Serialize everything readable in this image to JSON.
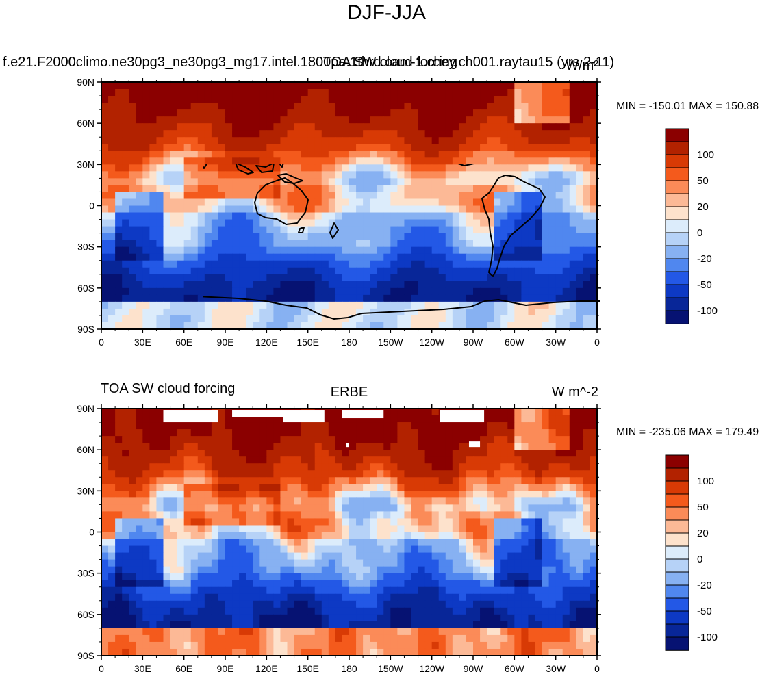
{
  "figure": {
    "title": "DJF-JJA"
  },
  "panels": [
    {
      "left_title": "f.e21.F2000climo.ne30pg3_ne30pg3_mg17.intel.1800pe.1thrd.cam-1.chey.ch001.raytau15 (yrs 2-11)",
      "center_title": "TOA SW cloud forcing",
      "right_title": "W/m²",
      "minmax": "MIN = -150.01 MAX = 150.88",
      "lat_ticks": [
        "90N",
        "60N",
        "30N",
        "0",
        "30S",
        "60S",
        "90S"
      ],
      "lon_ticks": [
        "0",
        "30E",
        "60E",
        "90E",
        "120E",
        "150E",
        "180",
        "150W",
        "120W",
        "90W",
        "60W",
        "30W",
        "0"
      ]
    },
    {
      "left_title": "TOA SW cloud forcing",
      "center_title": "ERBE",
      "right_title": "W m^-2",
      "minmax": "MIN = -235.06 MAX = 179.49",
      "lat_ticks": [
        "90N",
        "60N",
        "30N",
        "0",
        "30S",
        "60S",
        "90S"
      ],
      "lon_ticks": [
        "0",
        "30E",
        "60E",
        "90E",
        "120E",
        "150E",
        "180",
        "150W",
        "120W",
        "90W",
        "60W",
        "30W",
        "0"
      ]
    }
  ],
  "colorbar": {
    "labels": [
      "100",
      "50",
      "20",
      "0",
      "-20",
      "-50",
      "-100"
    ],
    "colors": [
      "#8b0000",
      "#b22200",
      "#d83a05",
      "#f45a1c",
      "#fb8b58",
      "#fcb996",
      "#fde2cc",
      "#dcecfb",
      "#b6d2f7",
      "#87b1f2",
      "#5087ef",
      "#2358e6",
      "#0d39c4",
      "#082698",
      "#061272"
    ]
  }
}
